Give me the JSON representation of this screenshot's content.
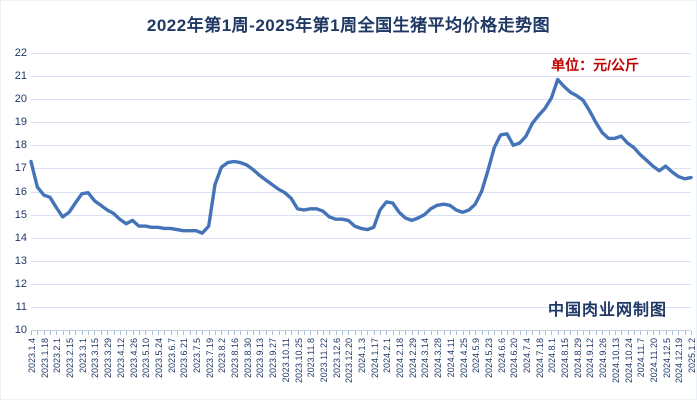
{
  "header": {
    "title": "2022年第1周-2025年第1周全国生猪平均价格走势图",
    "unit_label": "单位：元/公斤"
  },
  "watermark": "中国肉业网制图",
  "colors": {
    "line": "#4573B8",
    "title_text": "#1F3864",
    "unit_text": "#C00000",
    "axis_text": "#1F3864",
    "gridline": "#D9E2F1",
    "axis_line": "#C5D3E8",
    "tick": "#A9BCD6"
  },
  "chart_data": {
    "type": "line",
    "title": "2022年第1周-2025年第1周全国生猪平均价格走势图",
    "ylabel": "元/公斤",
    "ylim": [
      10,
      22
    ],
    "ytick_step": 1,
    "grid": true,
    "legend": "none",
    "label_every_n_points": 2,
    "x_labels": [
      "2023.1.4",
      "2023.1.18",
      "2023.2.1",
      "2023.2.15",
      "2023.3.1",
      "2023.3.15",
      "2023.3.29",
      "2023.4.12",
      "2023.4.26",
      "2023.5.10",
      "2023.5.24",
      "2023.6.7",
      "2023.6.21",
      "2023.7.5",
      "2023.7.19",
      "2023.8.2",
      "2023.8.16",
      "2023.8.30",
      "2023.9.13",
      "2023.9.27",
      "2023.10.11",
      "2023.10.25",
      "2023.11.8",
      "2023.11.22",
      "2023.12.6",
      "2023.12.20",
      "2024.1.3",
      "2024.1.17",
      "2024.2.1",
      "2024.2.18",
      "2024.2.29",
      "2024.3.14",
      "2024.3.28",
      "2024.4.11",
      "2024.4.25",
      "2024.5.9",
      "2024.5.23",
      "2024.6.6",
      "2024.6.20",
      "2024.7.4",
      "2024.7.18",
      "2024.8.1",
      "2024.8.15",
      "2024.8.29",
      "2024.9.12",
      "2024.9.26",
      "2024.10.13",
      "2024.10.24",
      "2024.11.7",
      "2024.11.20",
      "2024.12.5",
      "2024.12.19",
      "2025.1.2"
    ],
    "values": [
      17.3,
      16.2,
      15.85,
      15.75,
      15.3,
      14.9,
      15.1,
      15.5,
      15.9,
      15.95,
      15.6,
      15.4,
      15.2,
      15.05,
      14.8,
      14.6,
      14.75,
      14.5,
      14.5,
      14.45,
      14.45,
      14.4,
      14.4,
      14.35,
      14.3,
      14.3,
      14.3,
      14.2,
      14.5,
      16.3,
      17.05,
      17.25,
      17.3,
      17.25,
      17.15,
      16.95,
      16.7,
      16.5,
      16.3,
      16.1,
      15.95,
      15.7,
      15.25,
      15.2,
      15.25,
      15.25,
      15.15,
      14.9,
      14.8,
      14.8,
      14.75,
      14.5,
      14.4,
      14.35,
      14.45,
      15.2,
      15.55,
      15.5,
      15.1,
      14.85,
      14.75,
      14.85,
      15.0,
      15.25,
      15.4,
      15.45,
      15.4,
      15.2,
      15.1,
      15.2,
      15.45,
      16.0,
      16.9,
      17.9,
      18.45,
      18.5,
      18.0,
      18.1,
      18.4,
      18.95,
      19.3,
      19.6,
      20.05,
      20.85,
      20.55,
      20.3,
      20.15,
      19.95,
      19.5,
      19.0,
      18.55,
      18.3,
      18.3,
      18.4,
      18.1,
      17.9,
      17.6,
      17.35,
      17.1,
      16.9,
      17.1,
      16.85,
      16.65,
      16.55,
      16.6
    ]
  }
}
